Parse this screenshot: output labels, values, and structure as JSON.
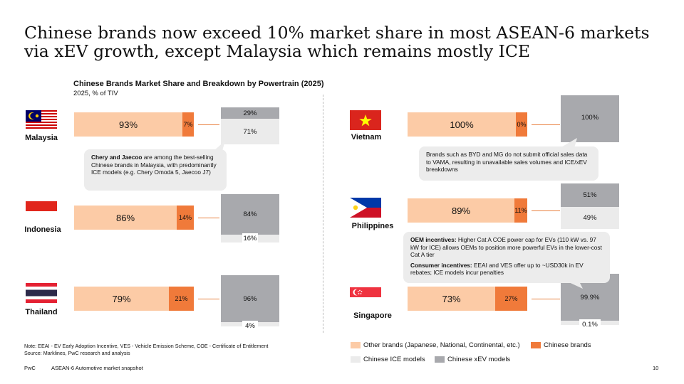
{
  "title": "Chinese brands now exceed 10% market share in most ASEAN-6 markets via xEV growth, except Malaysia which remains mostly ICE",
  "chart_data": {
    "type": "bar",
    "title": "Chinese Brands Market Share and Breakdown by Powertrain (2025)",
    "subtitle": "2025, % of TIV",
    "countries": [
      {
        "name": "Malaysia",
        "other": 93,
        "chinese": 7,
        "xev": 29,
        "ice": 71,
        "labels": {
          "other": "93%",
          "chinese": "7%",
          "xev": "29%",
          "ice": "71%"
        }
      },
      {
        "name": "Indonesia",
        "other": 86,
        "chinese": 14,
        "xev": 84,
        "ice": 16,
        "labels": {
          "other": "86%",
          "chinese": "14%",
          "xev": "84%",
          "ice": "16%"
        }
      },
      {
        "name": "Thailand",
        "other": 79,
        "chinese": 21,
        "xev": 96,
        "ice": 4,
        "labels": {
          "other": "79%",
          "chinese": "21%",
          "xev": "96%",
          "ice": "4%"
        }
      },
      {
        "name": "Vietnam",
        "other": 100,
        "chinese": 0,
        "xev": 100,
        "ice": 0,
        "labels": {
          "other": "100%",
          "chinese": "0%",
          "xev": "100%",
          "ice": ""
        }
      },
      {
        "name": "Philippines",
        "other": 89,
        "chinese": 11,
        "xev": 51,
        "ice": 49,
        "labels": {
          "other": "89%",
          "chinese": "11%",
          "xev": "51%",
          "ice": "49%"
        }
      },
      {
        "name": "Singapore",
        "other": 73,
        "chinese": 27,
        "xev": 99.9,
        "ice": 0.1,
        "labels": {
          "other": "73%",
          "chinese": "27%",
          "xev": "99.9%",
          "ice": "0.1%"
        }
      }
    ],
    "legend": [
      {
        "label": "Other brands (Japanese, National, Continental, etc.)",
        "color": "#FCCBA6"
      },
      {
        "label": "Chinese brands",
        "color": "#F07A3A"
      },
      {
        "label": "Chinese ICE models",
        "color": "#EBEBEB"
      },
      {
        "label": "Chinese xEV models",
        "color": "#A8A9AD"
      }
    ]
  },
  "callouts": {
    "malaysia_bold": "Chery and Jaecoo",
    "malaysia_text": " are among the best-selling Chinese brands in Malaysia, with predominantly ICE models (e.g. Chery Omoda 5, Jaecoo J7)",
    "vietnam_text": "Brands such as BYD and MG do not submit official sales data to VAMA, resulting in unavailable sales volumes and ICE/xEV breakdowns",
    "ph_oem_bold": "OEM incentives:",
    "ph_oem_text": " Higher Cat A COE power cap for EVs (110 kW vs. 97 kW for ICE) allows OEMs to position more powerful EVs in the lower-cost Cat A tier",
    "ph_consumer_bold": "Consumer incentives:",
    "ph_consumer_text": " EEAI and VES offer up to ~USD30k in EV rebates; ICE models incur penalties"
  },
  "note": "Note: EEAI - EV Early Adoption Incentive, VES - Vehicle Emission Scheme, COE - Certificate of Entitlement",
  "source": "Source: Marklines, PwC research and analysis",
  "footer": {
    "brand": "PwC",
    "doc": "ASEAN-6 Automotive market snapshot",
    "page": "10"
  },
  "colors": {
    "other": "#FCCBA6",
    "chinese": "#F07A3A",
    "ice": "#EBEBEB",
    "xev": "#A8A9AD"
  }
}
